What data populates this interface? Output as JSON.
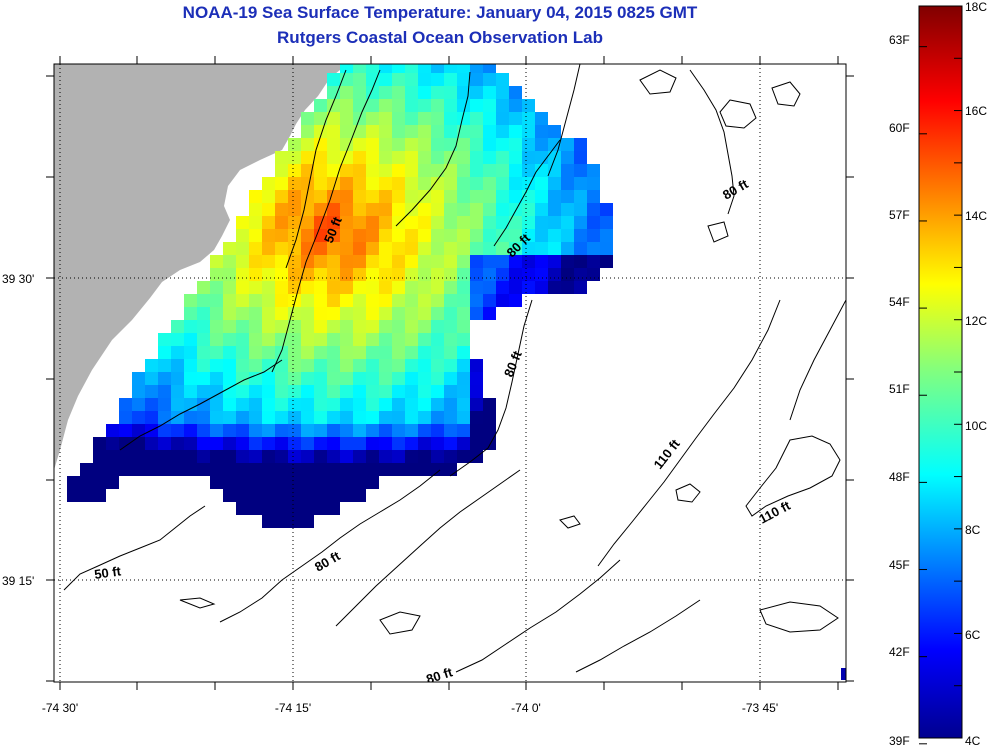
{
  "title": "NOAA-19 Sea Surface Temperature:  January 04, 2015 0825 GMT",
  "subtitle": "Rutgers Coastal Ocean Observation Lab",
  "axes": {
    "lon_labels": [
      "-74 30'",
      "-74 15'",
      "-74 0'",
      "-73 45'"
    ],
    "lat_labels": [
      "39 30'",
      "39 15'"
    ]
  },
  "contour_labels": [
    "50 ft",
    "80 ft",
    "80 ft",
    "80 ft",
    "80 ft",
    "110 ft",
    "110 ft",
    "50 ft",
    "80 ft"
  ],
  "colorbar": {
    "fahrenheit_labels": [
      "63F",
      "60F",
      "57F",
      "54F",
      "51F",
      "48F",
      "45F",
      "42F",
      "39F"
    ],
    "celsius_labels": [
      "18C",
      "16C",
      "14C",
      "12C",
      "10C",
      "8C",
      "6C",
      "4C"
    ],
    "range_c": [
      4,
      18
    ]
  },
  "colors": {
    "title": "#1c2fb8",
    "land": "#b2b2b2",
    "frame": "#000000"
  }
}
